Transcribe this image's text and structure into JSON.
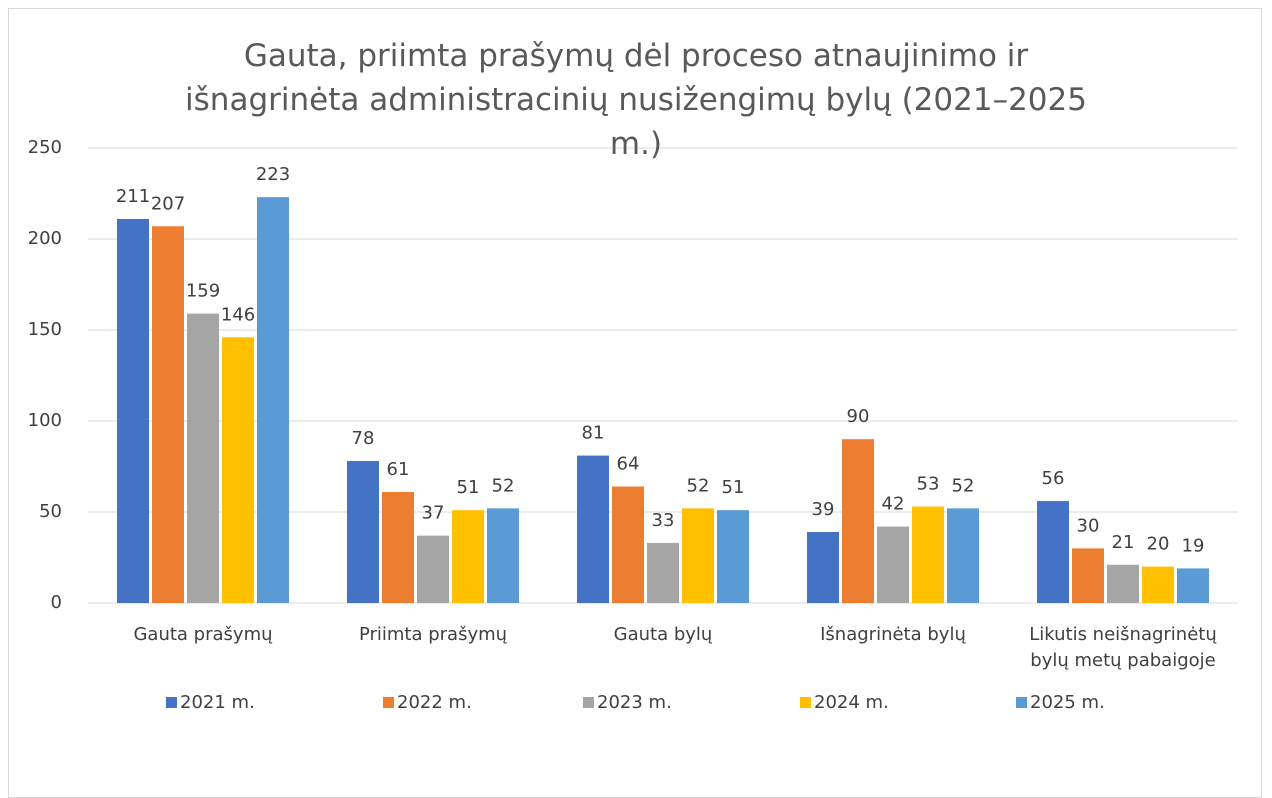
{
  "chart_data": {
    "type": "bar",
    "title": "Gauta, priimta prašymų dėl proceso atnaujinimo ir išnagrinėta administracinių nusižengimų bylų (2021–2025 m.)",
    "categories": [
      "Gauta prašymų",
      "Priimta prašymų",
      "Gauta bylų",
      "Išnagrinėta bylų",
      "Likutis neišnagrinėtų bylų metų pabaigoje"
    ],
    "series": [
      {
        "name": "2021 m.",
        "color": "#4472c4",
        "values": [
          211,
          78,
          81,
          39,
          56
        ]
      },
      {
        "name": "2022 m.",
        "color": "#ed7d31",
        "values": [
          207,
          61,
          64,
          90,
          30
        ]
      },
      {
        "name": "2023 m.",
        "color": "#a5a5a5",
        "values": [
          159,
          37,
          33,
          42,
          21
        ]
      },
      {
        "name": "2024 m.",
        "color": "#ffc000",
        "values": [
          146,
          51,
          52,
          53,
          20
        ]
      },
      {
        "name": "2025 m.",
        "color": "#5b9bd5",
        "values": [
          223,
          52,
          51,
          52,
          19
        ]
      }
    ],
    "ylim": [
      0,
      250
    ],
    "yticks": [
      0,
      50,
      100,
      150,
      200,
      250
    ],
    "grid": true,
    "legend": "bottom"
  }
}
